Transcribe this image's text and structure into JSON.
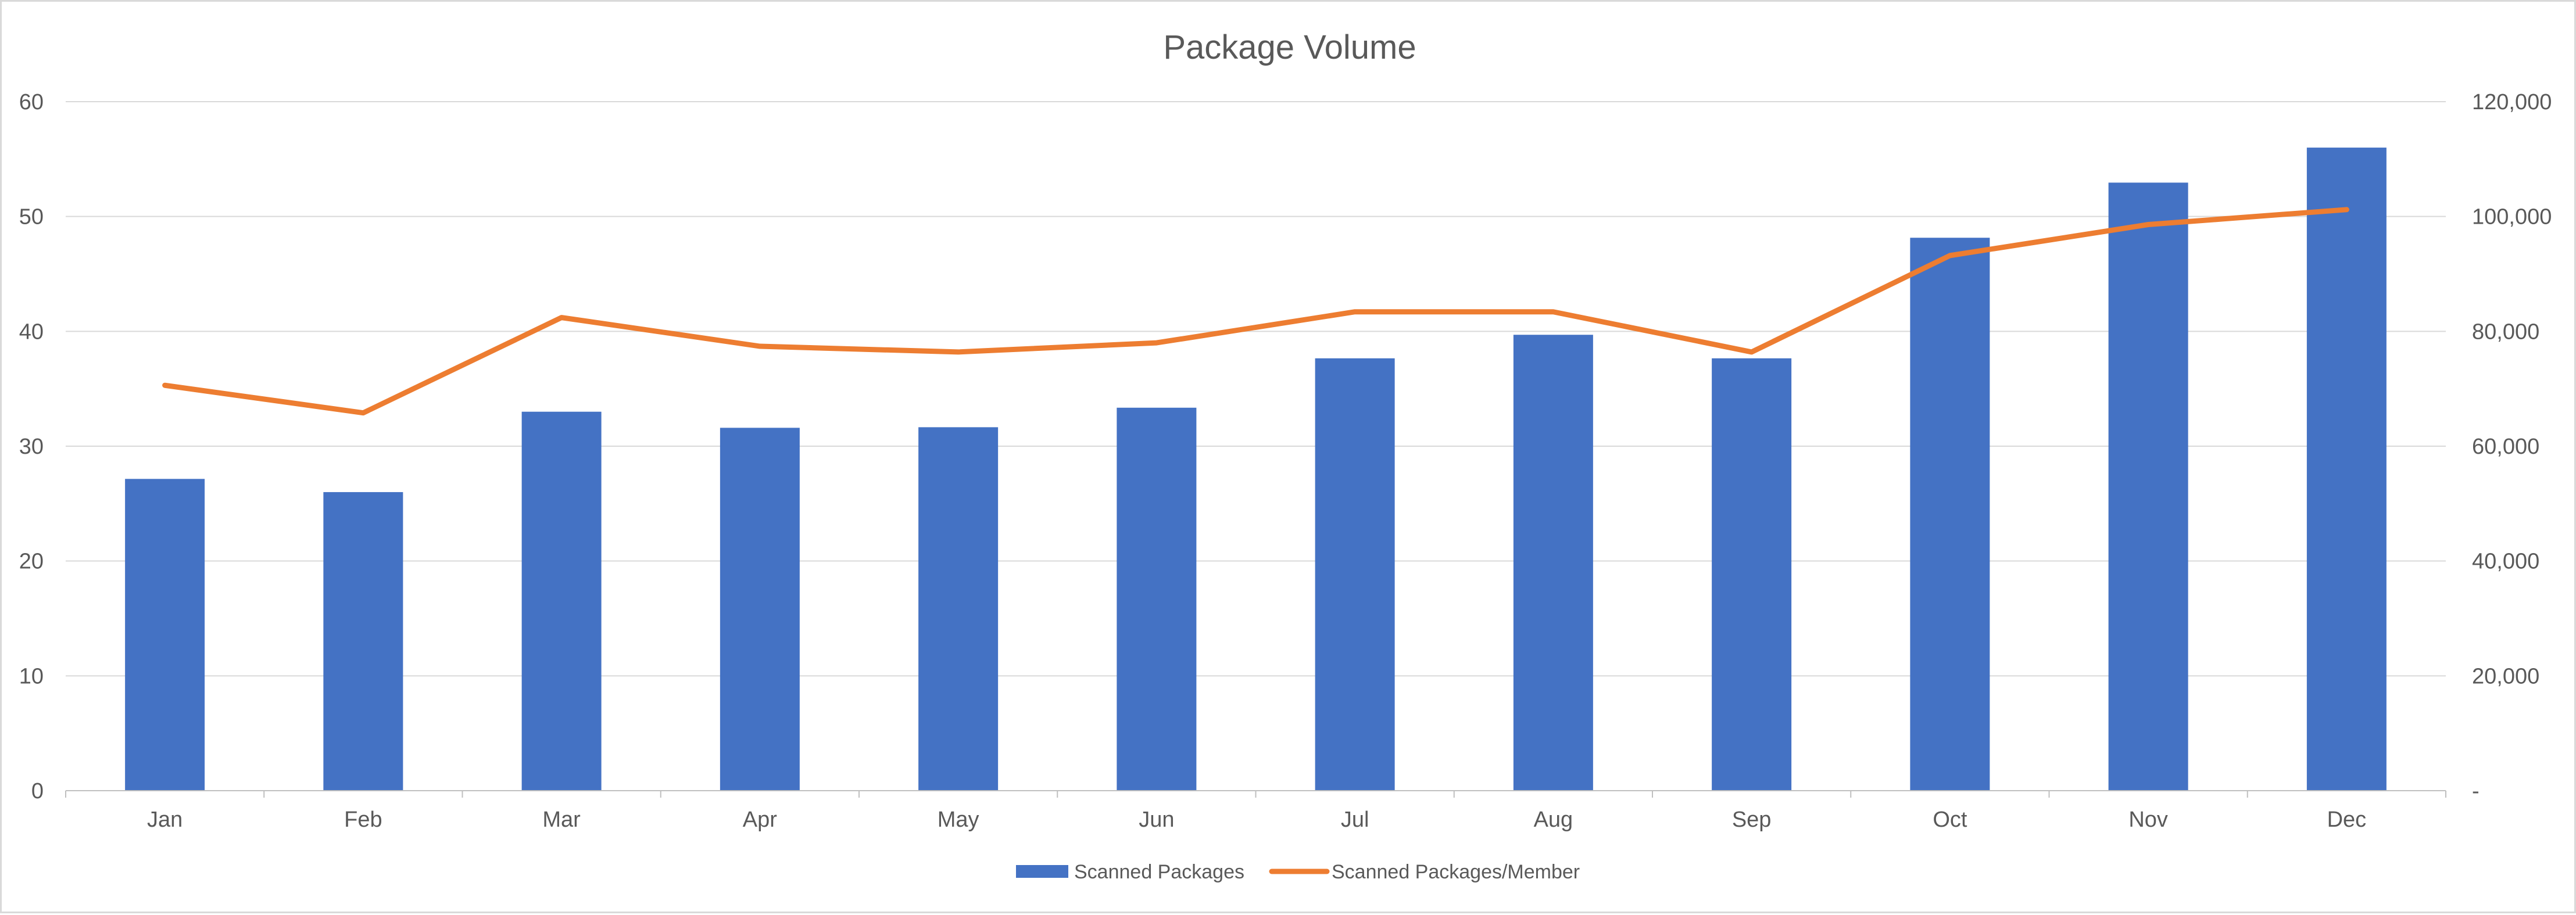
{
  "chart_data": {
    "type": "bar",
    "title": "Package Volume",
    "xlabel": "",
    "ylabel": "",
    "categories": [
      "Jan",
      "Feb",
      "Mar",
      "Apr",
      "May",
      "Jun",
      "Jul",
      "Aug",
      "Sep",
      "Oct",
      "Nov",
      "Dec"
    ],
    "series": [
      {
        "name": "Scanned Packages",
        "type": "bar",
        "axis": "right",
        "color": "#4472C4",
        "values": [
          54300,
          52000,
          66000,
          63200,
          63300,
          66700,
          75300,
          79400,
          75300,
          96300,
          105900,
          112000
        ]
      },
      {
        "name": "Scanned Packages/Member",
        "type": "line",
        "axis": "left",
        "color": "#ED7D31",
        "values": [
          35.3,
          32.9,
          41.2,
          38.7,
          38.2,
          39.0,
          41.7,
          41.7,
          38.2,
          46.6,
          49.3,
          50.6
        ]
      }
    ],
    "y_left": {
      "ylim": [
        0,
        60
      ],
      "ticks": [
        0,
        10,
        20,
        30,
        40,
        50,
        60
      ],
      "tick_labels": [
        "0",
        "10",
        "20",
        "30",
        "40",
        "50",
        "60"
      ]
    },
    "y_right": {
      "ylim": [
        0,
        120000
      ],
      "ticks": [
        0,
        20000,
        40000,
        60000,
        80000,
        100000,
        120000
      ],
      "tick_labels": [
        "-",
        "20,000",
        "40,000",
        "60,000",
        "80,000",
        "100,000",
        "120,000"
      ]
    },
    "grid": true,
    "legend": "bottom"
  }
}
